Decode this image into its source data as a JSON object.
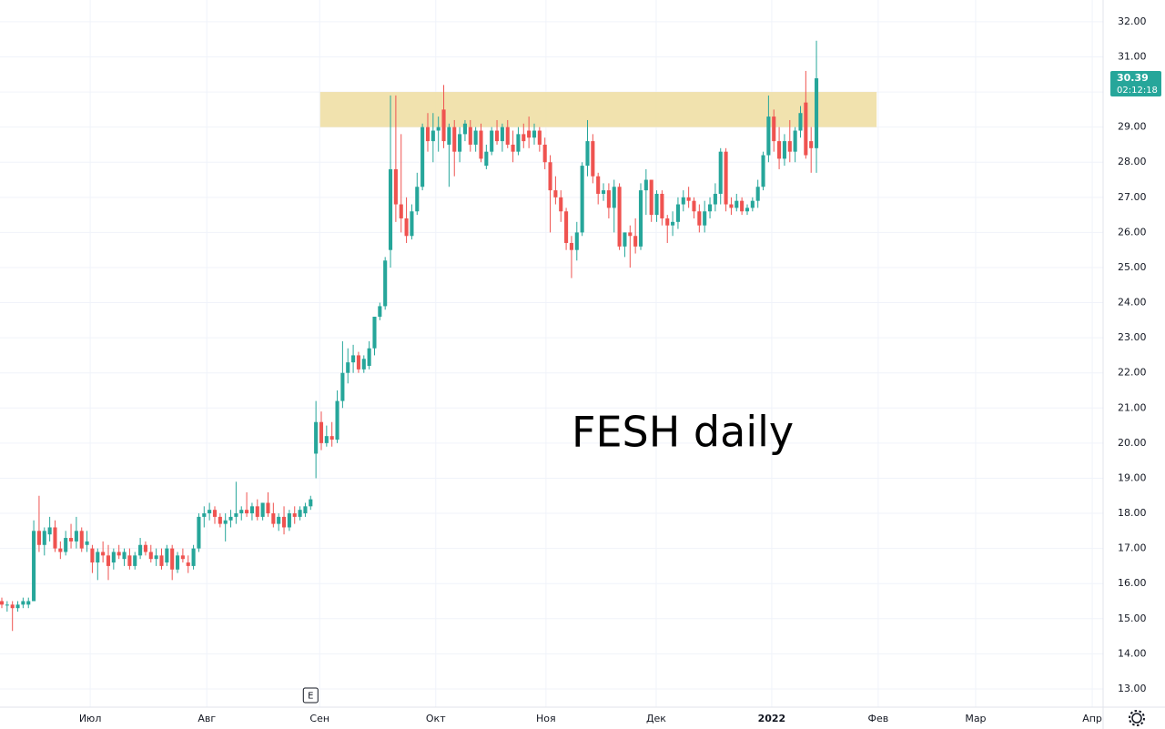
{
  "chart_data": {
    "type": "candlestick",
    "annotation": "FESH daily",
    "countdown": "02:12:18",
    "event_marker": {
      "label": "E",
      "x": 58
    },
    "up_color": "#26a69a",
    "down_color": "#ef5350",
    "grid": true,
    "zone": {
      "xlim": [
        59.8,
        164.3
      ],
      "ylim": [
        29,
        30
      ],
      "color": "#f0dfa5"
    },
    "xlim": [
      -0.34,
      206.84
    ],
    "ylim": [
      12.48,
      32.62
    ],
    "xticks": [
      {
        "value": 16.6,
        "label": "Июл"
      },
      {
        "value": 38.5,
        "label": "Авг"
      },
      {
        "value": 59.7,
        "label": "Сен"
      },
      {
        "value": 81.5,
        "label": "Окт"
      },
      {
        "value": 102.2,
        "label": "Ноя"
      },
      {
        "value": 122.9,
        "label": "Дек"
      },
      {
        "value": 144.6,
        "label": "2022"
      },
      {
        "value": 164.6,
        "label": "Фев"
      },
      {
        "value": 182.9,
        "label": "Мар"
      },
      {
        "value": 204.8,
        "label": "Апр"
      }
    ],
    "yticks": [
      {
        "value": 13,
        "label": "13.00"
      },
      {
        "value": 14,
        "label": "14.00"
      },
      {
        "value": 15,
        "label": "15.00"
      },
      {
        "value": 16,
        "label": "16.00"
      },
      {
        "value": 17,
        "label": "17.00"
      },
      {
        "value": 18,
        "label": "18.00"
      },
      {
        "value": 19,
        "label": "19.00"
      },
      {
        "value": 20,
        "label": "20.00"
      },
      {
        "value": 21,
        "label": "21.00"
      },
      {
        "value": 22,
        "label": "22.00"
      },
      {
        "value": 23,
        "label": "23.00"
      },
      {
        "value": 24,
        "label": "24.00"
      },
      {
        "value": 25,
        "label": "25.00"
      },
      {
        "value": 26,
        "label": "26.00"
      },
      {
        "value": 27,
        "label": "27.00"
      },
      {
        "value": 28,
        "label": "28.00"
      },
      {
        "value": 29,
        "label": "29.00"
      },
      {
        "value": 30,
        "label": "30.00"
      },
      {
        "value": 31,
        "label": "31.00"
      },
      {
        "value": 32,
        "label": "32.00"
      }
    ],
    "ohlc": [
      [
        15.5,
        15.6,
        15.3,
        15.4
      ],
      [
        15.4,
        15.5,
        15.2,
        15.4
      ],
      [
        15.4,
        15.5,
        14.65,
        15.3
      ],
      [
        15.3,
        15.5,
        15.2,
        15.4
      ],
      [
        15.4,
        15.6,
        15.3,
        15.5
      ],
      [
        15.4,
        15.6,
        15.3,
        15.5
      ],
      [
        15.5,
        17.8,
        15.5,
        17.5
      ],
      [
        17.5,
        18.5,
        16.9,
        17.1
      ],
      [
        17.1,
        17.6,
        16.8,
        17.5
      ],
      [
        17.4,
        17.9,
        17.2,
        17.6
      ],
      [
        17.6,
        17.8,
        16.9,
        17.0
      ],
      [
        17.0,
        17.2,
        16.7,
        16.9
      ],
      [
        16.9,
        17.5,
        16.8,
        17.3
      ],
      [
        17.3,
        17.7,
        17.0,
        17.2
      ],
      [
        17.2,
        17.9,
        17.0,
        17.5
      ],
      [
        17.5,
        17.6,
        16.9,
        17.0
      ],
      [
        17.1,
        17.5,
        16.9,
        17.2
      ],
      [
        17.0,
        17.1,
        16.3,
        16.6
      ],
      [
        16.6,
        17.0,
        16.1,
        16.9
      ],
      [
        16.9,
        17.2,
        16.6,
        16.8
      ],
      [
        16.8,
        17.1,
        16.1,
        16.5
      ],
      [
        16.6,
        17.0,
        16.4,
        16.9
      ],
      [
        16.9,
        17.1,
        16.7,
        16.8
      ],
      [
        16.7,
        17.0,
        16.5,
        16.9
      ],
      [
        16.8,
        17.0,
        16.4,
        16.5
      ],
      [
        16.5,
        16.9,
        16.4,
        16.8
      ],
      [
        16.8,
        17.3,
        16.7,
        17.1
      ],
      [
        17.1,
        17.2,
        16.8,
        16.9
      ],
      [
        16.9,
        17.1,
        16.6,
        16.7
      ],
      [
        16.7,
        17.0,
        16.5,
        16.8
      ],
      [
        16.8,
        17.0,
        16.4,
        16.5
      ],
      [
        16.6,
        17.1,
        16.5,
        17.0
      ],
      [
        17.0,
        17.1,
        16.1,
        16.4
      ],
      [
        16.4,
        16.9,
        16.3,
        16.8
      ],
      [
        16.8,
        17.0,
        16.6,
        16.7
      ],
      [
        16.6,
        16.8,
        16.3,
        16.5
      ],
      [
        16.5,
        17.1,
        16.4,
        17.0
      ],
      [
        17.0,
        18.0,
        16.9,
        17.9
      ],
      [
        17.9,
        18.2,
        17.6,
        18.0
      ],
      [
        18.0,
        18.3,
        17.8,
        18.1
      ],
      [
        18.1,
        18.2,
        17.7,
        17.9
      ],
      [
        17.9,
        18.0,
        17.6,
        17.7
      ],
      [
        17.7,
        18.0,
        17.2,
        17.8
      ],
      [
        17.8,
        18.1,
        17.6,
        17.9
      ],
      [
        17.9,
        18.9,
        17.7,
        18.0
      ],
      [
        18.0,
        18.2,
        17.8,
        18.1
      ],
      [
        18.1,
        18.6,
        17.9,
        18.0
      ],
      [
        18.0,
        18.3,
        17.8,
        18.2
      ],
      [
        18.2,
        18.4,
        17.8,
        17.9
      ],
      [
        17.9,
        18.3,
        17.8,
        18.3
      ],
      [
        18.3,
        18.6,
        17.9,
        18.0
      ],
      [
        18.0,
        18.3,
        17.6,
        17.7
      ],
      [
        17.7,
        18.0,
        17.5,
        17.9
      ],
      [
        17.9,
        18.2,
        17.4,
        17.6
      ],
      [
        17.6,
        18.1,
        17.5,
        18.0
      ],
      [
        18.0,
        18.2,
        17.7,
        17.9
      ],
      [
        17.9,
        18.2,
        17.8,
        18.1
      ],
      [
        18.0,
        18.3,
        17.9,
        18.2
      ],
      [
        18.2,
        18.5,
        18.1,
        18.4
      ],
      [
        19.7,
        21.2,
        19.0,
        20.6
      ],
      [
        20.6,
        20.9,
        19.8,
        20.0
      ],
      [
        20.0,
        20.5,
        19.9,
        20.2
      ],
      [
        20.2,
        20.6,
        19.9,
        20.1
      ],
      [
        20.1,
        21.5,
        20.0,
        21.2
      ],
      [
        21.2,
        22.9,
        21.0,
        22.0
      ],
      [
        22.0,
        22.7,
        21.7,
        22.3
      ],
      [
        22.3,
        22.8,
        22.0,
        22.5
      ],
      [
        22.5,
        22.6,
        22.0,
        22.1
      ],
      [
        22.1,
        22.5,
        22.0,
        22.4
      ],
      [
        22.2,
        22.9,
        22.1,
        22.7
      ],
      [
        22.7,
        23.6,
        22.5,
        23.6
      ],
      [
        23.6,
        24.0,
        23.5,
        23.9
      ],
      [
        23.9,
        25.3,
        23.8,
        25.2
      ],
      [
        25.5,
        29.9,
        25.0,
        27.8
      ],
      [
        27.8,
        29.9,
        26.3,
        26.8
      ],
      [
        26.8,
        28.8,
        26.0,
        26.4
      ],
      [
        26.4,
        27.0,
        25.7,
        25.9
      ],
      [
        25.9,
        26.8,
        25.8,
        26.6
      ],
      [
        26.6,
        27.7,
        26.5,
        27.3
      ],
      [
        27.3,
        29.1,
        27.2,
        29.0
      ],
      [
        29.0,
        29.4,
        28.3,
        28.6
      ],
      [
        28.6,
        29.4,
        28.0,
        28.9
      ],
      [
        28.9,
        29.3,
        28.3,
        29.0
      ],
      [
        29.5,
        30.2,
        28.4,
        28.6
      ],
      [
        28.5,
        29.1,
        27.3,
        29.0
      ],
      [
        29.0,
        29.2,
        27.6,
        28.3
      ],
      [
        28.3,
        29.0,
        28.0,
        28.8
      ],
      [
        28.8,
        29.2,
        28.6,
        29.1
      ],
      [
        29.0,
        29.2,
        28.3,
        28.5
      ],
      [
        28.5,
        29.0,
        28.3,
        28.9
      ],
      [
        28.9,
        29.1,
        28.0,
        28.1
      ],
      [
        27.9,
        28.5,
        27.8,
        28.3
      ],
      [
        28.3,
        29.0,
        28.2,
        28.9
      ],
      [
        28.9,
        29.2,
        28.5,
        28.6
      ],
      [
        28.6,
        29.1,
        28.3,
        29.0
      ],
      [
        29.0,
        29.2,
        28.4,
        28.5
      ],
      [
        28.5,
        28.9,
        28.0,
        28.3
      ],
      [
        28.3,
        29.0,
        28.2,
        28.8
      ],
      [
        28.8,
        29.1,
        28.4,
        28.6
      ],
      [
        28.9,
        29.3,
        28.4,
        28.7
      ],
      [
        28.7,
        29.1,
        28.5,
        28.9
      ],
      [
        28.9,
        29.0,
        28.3,
        28.5
      ],
      [
        28.5,
        28.7,
        27.8,
        28.0
      ],
      [
        28.0,
        28.2,
        26.0,
        27.2
      ],
      [
        27.2,
        27.6,
        26.8,
        27.0
      ],
      [
        27.0,
        27.2,
        26.3,
        26.6
      ],
      [
        26.6,
        26.7,
        25.5,
        25.7
      ],
      [
        25.7,
        25.9,
        24.7,
        25.5
      ],
      [
        25.5,
        26.3,
        25.2,
        26.0
      ],
      [
        26.0,
        28.0,
        25.9,
        27.9
      ],
      [
        27.9,
        29.2,
        27.6,
        28.6
      ],
      [
        28.6,
        28.8,
        27.4,
        27.6
      ],
      [
        27.6,
        27.7,
        26.8,
        27.1
      ],
      [
        27.1,
        27.4,
        26.9,
        27.2
      ],
      [
        27.2,
        27.4,
        26.4,
        26.7
      ],
      [
        26.7,
        27.5,
        26.0,
        27.3
      ],
      [
        27.3,
        27.4,
        25.5,
        25.6
      ],
      [
        25.6,
        26.0,
        25.3,
        26.0
      ],
      [
        26.0,
        26.2,
        25.0,
        25.9
      ],
      [
        25.9,
        26.4,
        25.4,
        25.6
      ],
      [
        25.6,
        27.4,
        25.5,
        27.2
      ],
      [
        27.2,
        27.8,
        26.5,
        27.5
      ],
      [
        27.5,
        27.5,
        26.3,
        26.5
      ],
      [
        26.5,
        27.2,
        26.3,
        27.1
      ],
      [
        27.1,
        27.2,
        26.2,
        26.4
      ],
      [
        26.4,
        26.5,
        25.7,
        26.2
      ],
      [
        26.2,
        26.6,
        25.9,
        26.3
      ],
      [
        26.3,
        27.0,
        26.1,
        26.8
      ],
      [
        26.8,
        27.2,
        26.6,
        27.0
      ],
      [
        27.0,
        27.3,
        26.7,
        26.9
      ],
      [
        26.9,
        27.0,
        26.4,
        26.6
      ],
      [
        26.6,
        26.8,
        26.0,
        26.2
      ],
      [
        26.2,
        26.9,
        26.0,
        26.6
      ],
      [
        26.6,
        27.0,
        26.4,
        26.8
      ],
      [
        26.8,
        27.4,
        26.6,
        27.1
      ],
      [
        27.1,
        28.4,
        26.8,
        28.3
      ],
      [
        28.3,
        28.4,
        26.6,
        26.8
      ],
      [
        26.8,
        27.0,
        26.5,
        26.7
      ],
      [
        26.7,
        27.1,
        26.6,
        26.9
      ],
      [
        26.9,
        27.0,
        26.5,
        26.6
      ],
      [
        26.6,
        26.8,
        26.5,
        26.7
      ],
      [
        26.7,
        27.0,
        26.6,
        26.9
      ],
      [
        26.9,
        27.5,
        26.7,
        27.3
      ],
      [
        27.3,
        28.3,
        27.2,
        28.2
      ],
      [
        28.2,
        29.9,
        28.0,
        29.3
      ],
      [
        29.3,
        29.5,
        28.3,
        28.6
      ],
      [
        28.6,
        29.0,
        27.8,
        28.1
      ],
      [
        28.1,
        28.8,
        27.9,
        28.6
      ],
      [
        28.6,
        29.2,
        28.0,
        28.3
      ],
      [
        28.3,
        29.0,
        28.0,
        28.9
      ],
      [
        28.9,
        29.6,
        28.7,
        29.4
      ],
      [
        29.7,
        30.6,
        28.1,
        28.2
      ],
      [
        28.6,
        29.0,
        27.7,
        28.4
      ],
      [
        28.4,
        31.46,
        27.7,
        30.39
      ]
    ]
  }
}
